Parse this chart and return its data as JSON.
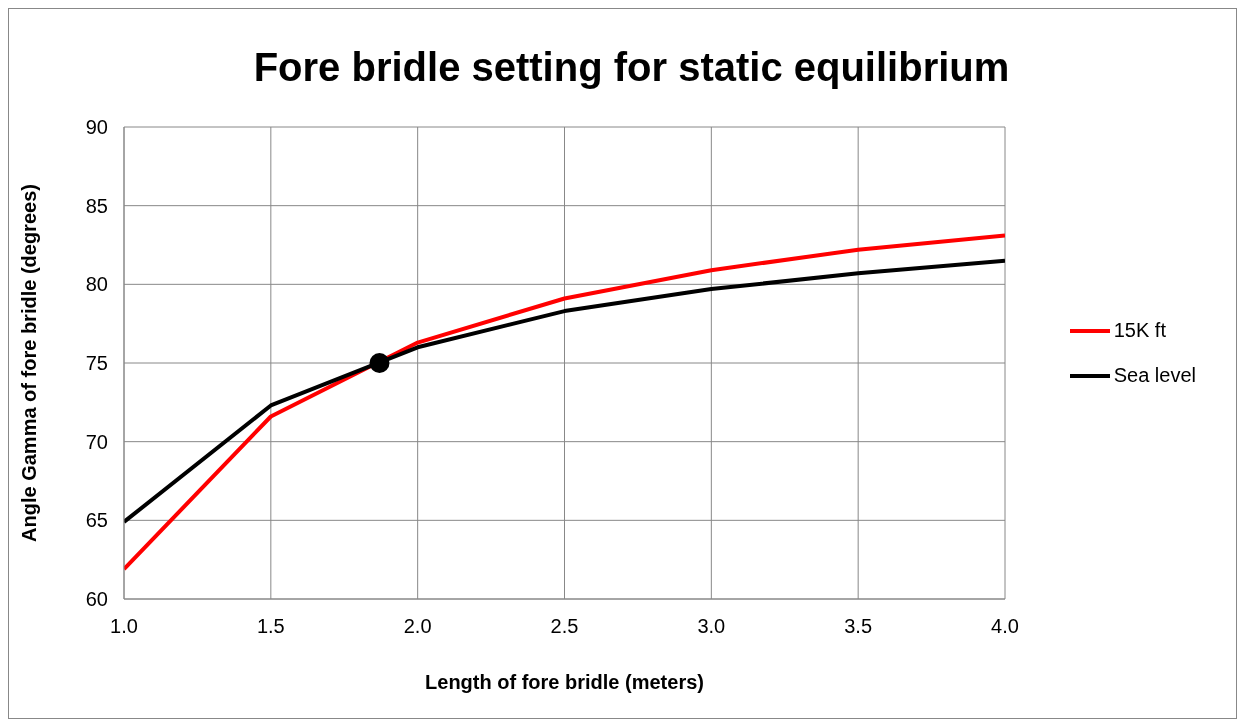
{
  "chart_data": {
    "type": "line",
    "title": "Fore bridle setting for static equilibrium",
    "xlabel": "Length of fore bridle  (meters)",
    "ylabel": "Angle Gamma of fore bridle  (degrees)",
    "x": [
      1.0,
      1.5,
      2.0,
      2.5,
      3.0,
      3.5,
      4.0
    ],
    "series": [
      {
        "name": "15K ft",
        "color": "#ff0000",
        "values": [
          61.9,
          71.6,
          76.3,
          79.1,
          80.9,
          82.2,
          83.1
        ]
      },
      {
        "name": "Sea level",
        "color": "#000000",
        "values": [
          64.9,
          72.3,
          76.0,
          78.3,
          79.7,
          80.7,
          81.5
        ]
      },
      {
        "type": "scatter",
        "color": "#000000",
        "x": [
          1.87
        ],
        "values": [
          75
        ]
      }
    ],
    "xlim": [
      1.0,
      4.0
    ],
    "xticks": [
      {
        "value": 1.0,
        "label": "1.0"
      },
      {
        "value": 1.5,
        "label": "1.5"
      },
      {
        "value": 2.0,
        "label": "2.0"
      },
      {
        "value": 2.5,
        "label": "2.5"
      },
      {
        "value": 3.0,
        "label": "3.0"
      },
      {
        "value": 3.5,
        "label": "3.5"
      },
      {
        "value": 4.0,
        "label": "4.0"
      }
    ],
    "ylim": [
      60,
      90
    ],
    "yticks": [
      60,
      65,
      70,
      75,
      80,
      85,
      90
    ],
    "grid": true,
    "legend": "right"
  }
}
